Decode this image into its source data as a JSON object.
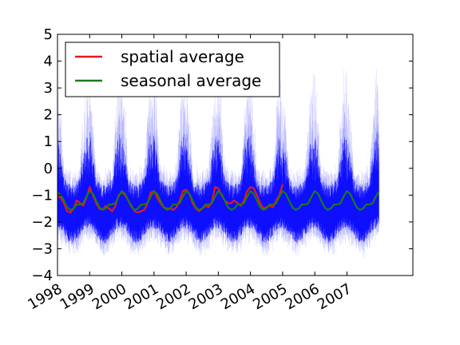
{
  "chart_data": {
    "type": "line",
    "title": "",
    "xlabel": "",
    "ylabel": "",
    "xlim": [
      1998.0,
      2009.05
    ],
    "ylim": [
      -4,
      5
    ],
    "grid": false,
    "legend_placement": "top-left",
    "xticks": [
      {
        "value": 1998,
        "label": "1998"
      },
      {
        "value": 1999,
        "label": "1999"
      },
      {
        "value": 2000,
        "label": "2000"
      },
      {
        "value": 2001,
        "label": "2001"
      },
      {
        "value": 2002,
        "label": "2002"
      },
      {
        "value": 2003,
        "label": "2003"
      },
      {
        "value": 2004,
        "label": "2004"
      },
      {
        "value": 2005,
        "label": "2005"
      },
      {
        "value": 2006,
        "label": "2006"
      },
      {
        "value": 2007,
        "label": "2007"
      }
    ],
    "yticks": [
      {
        "value": -4,
        "label": "−4"
      },
      {
        "value": -3,
        "label": "−3"
      },
      {
        "value": -2,
        "label": "−2"
      },
      {
        "value": -1,
        "label": "−1"
      },
      {
        "value": 0,
        "label": "0"
      },
      {
        "value": 1,
        "label": "1"
      },
      {
        "value": 2,
        "label": "2"
      },
      {
        "value": 3,
        "label": "3"
      },
      {
        "value": 4,
        "label": "4"
      },
      {
        "value": 5,
        "label": "5"
      }
    ],
    "series": [
      {
        "name": "spatial average",
        "color": "#e31a1c",
        "x": [
          1998.0,
          1998.1,
          1998.2,
          1998.3,
          1998.4,
          1998.5,
          1998.6,
          1998.7,
          1998.8,
          1998.9,
          1999.0,
          1999.1,
          1999.2,
          1999.3,
          1999.4,
          1999.5,
          1999.6,
          1999.7,
          1999.8,
          1999.9,
          2000.0,
          2000.1,
          2000.2,
          2000.3,
          2000.4,
          2000.5,
          2000.6,
          2000.7,
          2000.8,
          2000.9,
          2001.0,
          2001.1,
          2001.2,
          2001.3,
          2001.4,
          2001.5,
          2001.6,
          2001.7,
          2001.8,
          2001.9,
          2002.0,
          2002.1,
          2002.2,
          2002.3,
          2002.4,
          2002.5,
          2002.6,
          2002.7,
          2002.8,
          2002.9,
          2003.0,
          2003.1,
          2003.2,
          2003.3,
          2003.4,
          2003.5,
          2003.6,
          2003.7,
          2003.8,
          2003.9,
          2004.0,
          2004.1,
          2004.2,
          2004.3,
          2004.4,
          2004.5,
          2004.6,
          2004.7,
          2004.8,
          2004.9,
          2005.0
        ],
        "y": [
          -1.0,
          -1.1,
          -1.3,
          -1.6,
          -1.65,
          -1.5,
          -1.2,
          -1.3,
          -1.4,
          -1.1,
          -0.7,
          -1.0,
          -1.3,
          -1.5,
          -1.55,
          -1.4,
          -1.5,
          -1.6,
          -1.4,
          -1.0,
          -0.9,
          -1.0,
          -1.2,
          -1.4,
          -1.6,
          -1.65,
          -1.6,
          -1.55,
          -1.3,
          -0.9,
          -0.85,
          -1.1,
          -1.3,
          -1.45,
          -1.5,
          -1.5,
          -1.55,
          -1.45,
          -1.2,
          -0.85,
          -0.8,
          -0.95,
          -1.3,
          -1.5,
          -1.6,
          -1.5,
          -1.4,
          -1.45,
          -1.25,
          -0.7,
          -0.75,
          -1.0,
          -1.2,
          -1.3,
          -1.3,
          -1.2,
          -1.3,
          -1.4,
          -1.2,
          -0.85,
          -0.7,
          -0.75,
          -1.0,
          -1.3,
          -1.5,
          -1.45,
          -1.4,
          -1.45,
          -1.2,
          -1.0,
          -0.6
        ]
      },
      {
        "name": "seasonal average",
        "color": "#1b7a1b",
        "x": [
          1998.0,
          1998.1,
          1998.2,
          1998.3,
          1998.4,
          1998.5,
          1998.6,
          1998.7,
          1998.8,
          1998.9,
          1999.0,
          1999.1,
          1999.2,
          1999.3,
          1999.4,
          1999.5,
          1999.6,
          1999.7,
          1999.8,
          1999.9,
          2000.0,
          2000.1,
          2000.2,
          2000.3,
          2000.4,
          2000.5,
          2000.6,
          2000.7,
          2000.8,
          2000.9,
          2001.0,
          2001.1,
          2001.2,
          2001.3,
          2001.4,
          2001.5,
          2001.6,
          2001.7,
          2001.8,
          2001.9,
          2002.0,
          2002.1,
          2002.2,
          2002.3,
          2002.4,
          2002.5,
          2002.6,
          2002.7,
          2002.8,
          2002.9,
          2003.0,
          2003.1,
          2003.2,
          2003.3,
          2003.4,
          2003.5,
          2003.6,
          2003.7,
          2003.8,
          2003.9,
          2004.0,
          2004.1,
          2004.2,
          2004.3,
          2004.4,
          2004.5,
          2004.6,
          2004.7,
          2004.8,
          2004.9,
          2005.0,
          2005.1,
          2005.2,
          2005.3,
          2005.4,
          2005.5,
          2005.6,
          2005.7,
          2005.8,
          2005.9,
          2006.0,
          2006.1,
          2006.2,
          2006.3,
          2006.4,
          2006.5,
          2006.6,
          2006.7,
          2006.8,
          2006.9,
          2007.0,
          2007.1,
          2007.2,
          2007.3,
          2007.4,
          2007.5,
          2007.6,
          2007.7,
          2007.8,
          2007.9,
          2008.0
        ],
        "y": [
          -0.9,
          -1.0,
          -1.2,
          -1.45,
          -1.55,
          -1.5,
          -1.35,
          -1.35,
          -1.3,
          -1.05,
          -0.85,
          -0.95,
          -1.2,
          -1.45,
          -1.55,
          -1.5,
          -1.35,
          -1.35,
          -1.3,
          -1.05,
          -0.85,
          -0.95,
          -1.2,
          -1.45,
          -1.55,
          -1.5,
          -1.35,
          -1.35,
          -1.3,
          -1.05,
          -0.85,
          -0.95,
          -1.2,
          -1.45,
          -1.55,
          -1.5,
          -1.35,
          -1.35,
          -1.3,
          -1.05,
          -0.85,
          -0.95,
          -1.2,
          -1.45,
          -1.55,
          -1.5,
          -1.35,
          -1.35,
          -1.3,
          -1.05,
          -0.85,
          -0.95,
          -1.2,
          -1.45,
          -1.55,
          -1.5,
          -1.35,
          -1.35,
          -1.3,
          -1.05,
          -0.85,
          -0.95,
          -1.2,
          -1.45,
          -1.55,
          -1.5,
          -1.35,
          -1.35,
          -1.3,
          -1.05,
          -0.85,
          -0.95,
          -1.2,
          -1.45,
          -1.55,
          -1.5,
          -1.35,
          -1.35,
          -1.3,
          -1.05,
          -0.85,
          -0.95,
          -1.2,
          -1.45,
          -1.55,
          -1.5,
          -1.35,
          -1.35,
          -1.3,
          -1.05,
          -0.85,
          -0.95,
          -1.2,
          -1.45,
          -1.55,
          -1.5,
          -1.35,
          -1.35,
          -1.3,
          -1.05,
          -0.85
        ]
      }
    ],
    "background_series": {
      "color": "#0000ff",
      "x_start": 1998.0,
      "x_end": 2008.0,
      "cycle_years": 1.0,
      "center": -1.25,
      "amplitude": 1.1,
      "core_spread": 0.9,
      "tail_spread": 2.2
    }
  }
}
